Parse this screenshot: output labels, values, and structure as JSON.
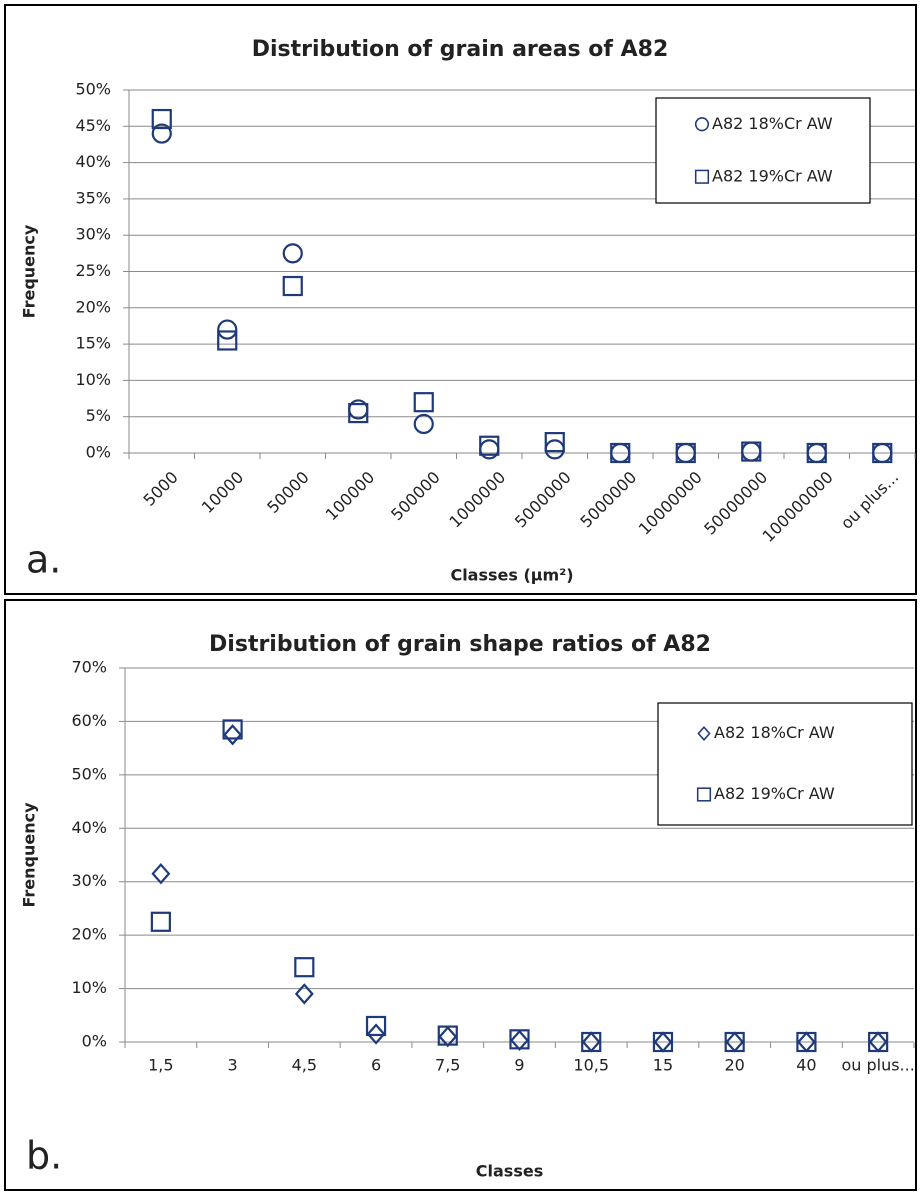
{
  "chart_data": [
    {
      "type": "scatter",
      "panel": "a.",
      "title": "Distribution of grain areas of A82",
      "y_label": "Frequency",
      "x_label": "Classes (µm²)",
      "categories": [
        "5000",
        "10000",
        "50000",
        "100000",
        "500000",
        "1000000",
        "5000000",
        "5000000",
        "10000000",
        "50000000",
        "100000000",
        "ou plus..."
      ],
      "rotate_x_labels": true,
      "series": [
        {
          "name": "A82 18%Cr AW",
          "color": "#1f3a7a",
          "marker": "circle",
          "values": [
            44,
            17,
            27.5,
            6,
            4,
            0.5,
            0.5,
            0,
            0,
            0.2,
            0,
            0
          ]
        },
        {
          "name": "A82 19%Cr AW",
          "color": "#1f3a7a",
          "marker": "square",
          "values": [
            46,
            15.5,
            23,
            5.5,
            7,
            1,
            1.5,
            0,
            0,
            0.2,
            0,
            0
          ]
        }
      ],
      "ylim": [
        0,
        50
      ],
      "yticks": [
        {
          "value": 0,
          "label": "0%"
        },
        {
          "value": 5,
          "label": "5%"
        },
        {
          "value": 10,
          "label": "10%"
        },
        {
          "value": 15,
          "label": "15%"
        },
        {
          "value": 20,
          "label": "20%"
        },
        {
          "value": 25,
          "label": "25%"
        },
        {
          "value": 30,
          "label": "30%"
        },
        {
          "value": 35,
          "label": "35%"
        },
        {
          "value": 40,
          "label": "40%"
        },
        {
          "value": 45,
          "label": "45%"
        },
        {
          "value": 50,
          "label": "50%"
        }
      ],
      "grid": true,
      "legend": "top-right"
    },
    {
      "type": "scatter",
      "panel": "b.",
      "title": "Distribution of grain shape ratios of A82",
      "y_label": "Frenquency",
      "x_label": "Classes",
      "categories": [
        "1,5",
        "3",
        "4,5",
        "6",
        "7,5",
        "9",
        "10,5",
        "15",
        "20",
        "40",
        "ou plus..."
      ],
      "rotate_x_labels": false,
      "series": [
        {
          "name": "A82 18%Cr AW",
          "color": "#1f3a7a",
          "marker": "diamond",
          "values": [
            31.5,
            57.5,
            9,
            1.5,
            1,
            0.3,
            0,
            0,
            0,
            0,
            0
          ]
        },
        {
          "name": "A82 19%Cr AW",
          "color": "#1f3a7a",
          "marker": "square",
          "values": [
            22.5,
            58.5,
            14,
            3,
            1.2,
            0.5,
            0,
            0,
            0,
            0,
            0
          ]
        }
      ],
      "ylim": [
        0,
        70
      ],
      "yticks": [
        {
          "value": 0,
          "label": "0%"
        },
        {
          "value": 10,
          "label": "10%"
        },
        {
          "value": 20,
          "label": "20%"
        },
        {
          "value": 30,
          "label": "30%"
        },
        {
          "value": 40,
          "label": "40%"
        },
        {
          "value": 50,
          "label": "50%"
        },
        {
          "value": 60,
          "label": "60%"
        },
        {
          "value": 70,
          "label": "70%"
        }
      ],
      "grid": true,
      "legend": "top-right"
    }
  ]
}
